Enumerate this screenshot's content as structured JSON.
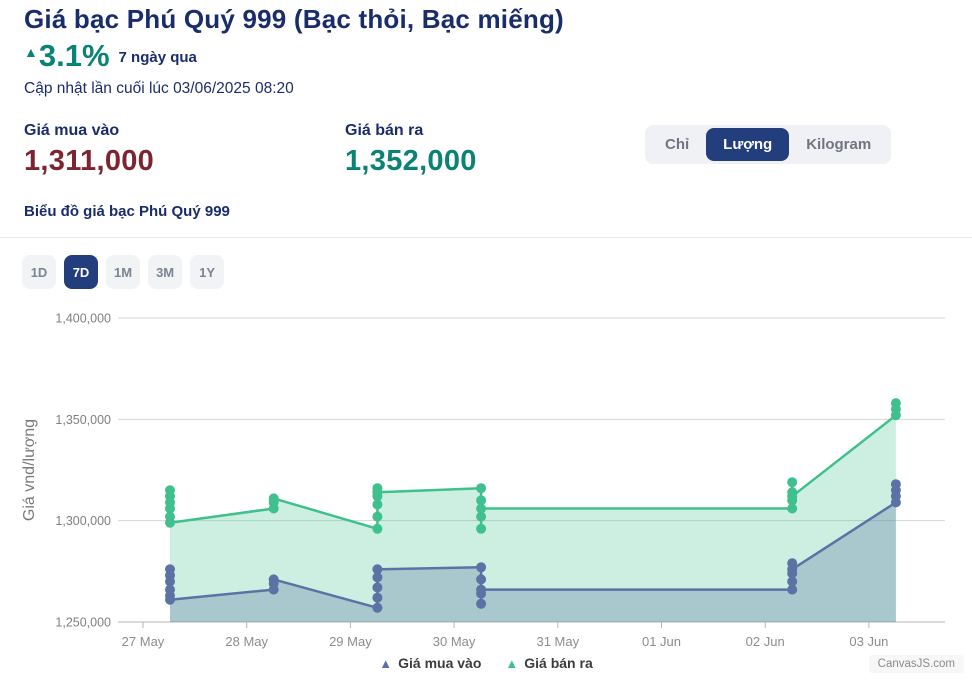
{
  "header": {
    "title": "Giá bạc Phú Quý 999 (Bạc thỏi, Bạc miếng)",
    "change_arrow": "▲",
    "change_pct": "3.1%",
    "change_period": "7 ngày qua",
    "change_color": "#0a8276",
    "last_updated": "Cập nhật lần cuối lúc 03/06/2025 08:20"
  },
  "prices": {
    "buy_label": "Giá mua vào",
    "buy_value": "1,311,000",
    "buy_color": "#7c2531",
    "sell_label": "Giá bán ra",
    "sell_value": "1,352,000",
    "sell_color": "#0a8276"
  },
  "unit_toggle": {
    "options": [
      {
        "label": "Chỉ",
        "active": false
      },
      {
        "label": "Lượng",
        "active": true
      },
      {
        "label": "Kilogram",
        "active": false
      }
    ],
    "active_bg": "#223e7c"
  },
  "chart_section": {
    "title": "Biểu đồ giá bạc Phú Quý 999"
  },
  "range_buttons": [
    {
      "label": "1D",
      "active": false
    },
    {
      "label": "7D",
      "active": true
    },
    {
      "label": "1M",
      "active": false
    },
    {
      "label": "3M",
      "active": false
    },
    {
      "label": "1Y",
      "active": false
    }
  ],
  "chart_data": {
    "type": "line",
    "ylabel": "Giá vnd/lượng",
    "x_ticks": [
      "27 May",
      "28 May",
      "29 May",
      "30 May",
      "31 May",
      "01 Jun",
      "02 Jun",
      "03 Jun"
    ],
    "y_ticks": [
      {
        "value": 1250000,
        "label": "1,250,000"
      },
      {
        "value": 1300000,
        "label": "1,300,000"
      },
      {
        "value": 1350000,
        "label": "1,350,000"
      },
      {
        "value": 1400000,
        "label": "1,400,000"
      }
    ],
    "ylim": [
      1250000,
      1403000
    ],
    "grid": true,
    "legend_position": "bottom",
    "watermark": "CanvasJS.com",
    "series": [
      {
        "name": "Giá mua vào",
        "color": "#5b72a5",
        "fill": "rgba(85,110,160,0.30)",
        "points": [
          [
            0.26,
            1276000
          ],
          [
            0.26,
            1273000
          ],
          [
            0.26,
            1270000
          ],
          [
            0.26,
            1266000
          ],
          [
            0.26,
            1263000
          ],
          [
            0.26,
            1261000
          ],
          [
            1.26,
            1266000
          ],
          [
            1.26,
            1269000
          ],
          [
            1.26,
            1271000
          ],
          [
            2.26,
            1257000
          ],
          [
            2.26,
            1262000
          ],
          [
            2.26,
            1267000
          ],
          [
            2.26,
            1272000
          ],
          [
            2.26,
            1276000
          ],
          [
            3.26,
            1277000
          ],
          [
            3.26,
            1271000
          ],
          [
            3.26,
            1264000
          ],
          [
            3.26,
            1259000
          ],
          [
            3.26,
            1266000
          ],
          [
            6.26,
            1266000
          ],
          [
            6.26,
            1270000
          ],
          [
            6.26,
            1274000
          ],
          [
            6.26,
            1279000
          ],
          [
            6.26,
            1276000
          ],
          [
            7.26,
            1309000
          ],
          [
            7.26,
            1312000
          ],
          [
            7.26,
            1315000
          ],
          [
            7.26,
            1318000
          ]
        ]
      },
      {
        "name": "Giá bán ra",
        "color": "#3fc08d",
        "fill": "rgba(63,192,141,0.26)",
        "points": [
          [
            0.26,
            1315000
          ],
          [
            0.26,
            1312000
          ],
          [
            0.26,
            1309000
          ],
          [
            0.26,
            1306000
          ],
          [
            0.26,
            1302000
          ],
          [
            0.26,
            1299000
          ],
          [
            1.26,
            1306000
          ],
          [
            1.26,
            1309000
          ],
          [
            1.26,
            1311000
          ],
          [
            2.26,
            1296000
          ],
          [
            2.26,
            1302000
          ],
          [
            2.26,
            1308000
          ],
          [
            2.26,
            1312000
          ],
          [
            2.26,
            1316000
          ],
          [
            2.26,
            1314000
          ],
          [
            3.26,
            1316000
          ],
          [
            3.26,
            1310000
          ],
          [
            3.26,
            1302000
          ],
          [
            3.26,
            1296000
          ],
          [
            3.26,
            1306000
          ],
          [
            6.26,
            1306000
          ],
          [
            6.26,
            1310000
          ],
          [
            6.26,
            1314000
          ],
          [
            6.26,
            1319000
          ],
          [
            6.26,
            1312000
          ],
          [
            7.26,
            1352000
          ],
          [
            7.26,
            1355000
          ],
          [
            7.26,
            1358000
          ]
        ]
      }
    ]
  }
}
